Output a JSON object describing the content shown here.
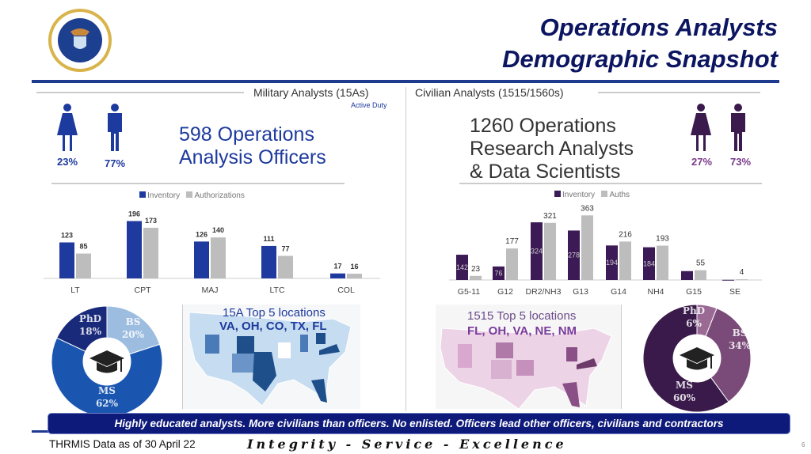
{
  "header": {
    "title_line1": "Operations Analysts",
    "title_line2": "Demographic Snapshot",
    "logo": "Department of the Air Force seal"
  },
  "military": {
    "section": "Military Analysts (15As)",
    "subsection": "Active Duty",
    "female_pct": "23%",
    "male_pct": "77%",
    "headline_line1": "598 Operations",
    "headline_line2": "Analysis Officers",
    "color": "#1d3a9e",
    "education": [
      {
        "label": "PhD",
        "pct": "18%",
        "value": 18,
        "color": "#1a2a7a"
      },
      {
        "label": "BS",
        "pct": "20%",
        "value": 20,
        "color": "#9dbde0"
      },
      {
        "label": "MS",
        "pct": "62%",
        "value": 62,
        "color": "#1a56b0"
      }
    ],
    "locations_title": "15A Top 5 locations",
    "locations": "VA, OH, CO, TX, FL"
  },
  "civilian": {
    "section": "Civilian Analysts (1515/1560s)",
    "female_pct": "27%",
    "male_pct": "73%",
    "headline_line1": "1260 Operations",
    "headline_line2": "Research Analysts",
    "headline_line3": "& Data Scientists",
    "color": "#3b1a4e",
    "education": [
      {
        "label": "PhD",
        "pct": "6%",
        "value": 6,
        "color": "#9a6a94"
      },
      {
        "label": "BS",
        "pct": "34%",
        "value": 34,
        "color": "#7a4a78"
      },
      {
        "label": "MS",
        "pct": "60%",
        "value": 60,
        "color": "#3a1a4a"
      }
    ],
    "locations_title": "1515 Top 5 locations",
    "locations": "FL, OH, VA, NE, NM"
  },
  "chart_data": [
    {
      "type": "bar",
      "title": "",
      "categories": [
        "LT",
        "CPT",
        "MAJ",
        "LTC",
        "COL"
      ],
      "series": [
        {
          "name": "Inventory",
          "values": [
            123,
            196,
            126,
            111,
            17
          ],
          "color": "#1f3a9e"
        },
        {
          "name": "Authorizations",
          "values": [
            85,
            173,
            140,
            77,
            16
          ],
          "color": "#bdbdbd"
        }
      ],
      "legend": "top-center",
      "ylim": [
        0,
        200
      ]
    },
    {
      "type": "bar",
      "title": "",
      "categories": [
        "G5-11",
        "G12",
        "DR2/NH3",
        "G13",
        "G14",
        "NH4",
        "G15",
        "SE"
      ],
      "series": [
        {
          "name": "Inventory",
          "values": [
            142,
            76,
            324,
            278,
            194,
            184,
            50,
            1
          ],
          "labels": [
            "142",
            "76",
            "324",
            "278",
            "194",
            "184",
            "",
            ""
          ],
          "color": "#3b1a55"
        },
        {
          "name": "Auths",
          "values": [
            23,
            177,
            321,
            363,
            216,
            193,
            55,
            4
          ],
          "labels": [
            "23",
            "177",
            "321",
            "363",
            "216",
            "193",
            "55",
            "4"
          ],
          "color": "#bdbdbd"
        }
      ],
      "legend": "top-center",
      "ylim": [
        0,
        370
      ]
    }
  ],
  "footer": {
    "banner": "Highly educated analysts. More civilians than officers. No enlisted. Officers lead other officers, civilians and contractors",
    "source": "THRMIS Data as of 30 April 22",
    "motto": "Integrity - Service - Excellence",
    "page": "6"
  }
}
